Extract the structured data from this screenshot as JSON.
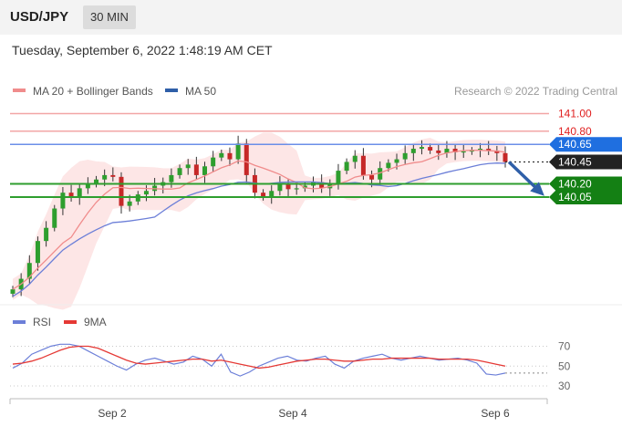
{
  "header": {
    "pair": "USD/JPY",
    "timeframe": "30 MIN",
    "datetime": "Tuesday, September 6, 2022 1:48:19 AM CET"
  },
  "legend": {
    "ma20": "MA 20 + Bollinger Bands",
    "ma50": "MA 50",
    "copyright": "Research © 2022 Trading Central",
    "rsi": "RSI",
    "rsi_ma": "9MA"
  },
  "colors": {
    "candle_up": "#2e9e2e",
    "candle_down": "#c62828",
    "ma20": "#f08c8c",
    "ma50": "#6c7fd8",
    "bollinger_fill": "#fde3e3",
    "resistance": "#f2a6a6",
    "pivot": "#6b8fe8",
    "support": "#2e9e2e",
    "badge_blue": "#1f6fe0",
    "badge_dark": "#222222",
    "badge_green": "#148014",
    "rsi_line": "#6c7fd8",
    "rsi_ma_line": "#e53935",
    "forecast_arrow": "#2f5fa8"
  },
  "chart_data": [
    {
      "type": "candlestick",
      "title": "USD/JPY",
      "x_ticks": [
        "Sep 2",
        "Sep 4",
        "Sep 6"
      ],
      "price_levels": [
        {
          "value": 141.0,
          "label": "141.00",
          "kind": "resistance"
        },
        {
          "value": 140.8,
          "label": "140.80",
          "kind": "resistance"
        },
        {
          "value": 140.65,
          "label": "140.65",
          "kind": "pivot"
        },
        {
          "value": 140.45,
          "label": "140.45",
          "kind": "last"
        },
        {
          "value": 140.2,
          "label": "140.20",
          "kind": "support"
        },
        {
          "value": 140.05,
          "label": "140.05",
          "kind": "support"
        }
      ],
      "ylim": [
        138.95,
        141.25
      ],
      "close_series": [
        139.0,
        139.12,
        139.3,
        139.55,
        139.7,
        139.92,
        140.1,
        140.05,
        140.15,
        140.2,
        140.25,
        140.3,
        140.28,
        139.95,
        140.0,
        140.08,
        140.12,
        140.18,
        140.22,
        140.3,
        140.38,
        140.42,
        140.3,
        140.4,
        140.5,
        140.55,
        140.48,
        140.66,
        140.3,
        140.1,
        140.05,
        140.12,
        140.2,
        140.14,
        140.15,
        140.18,
        140.22,
        140.15,
        140.2,
        140.35,
        140.45,
        140.52,
        140.3,
        140.25,
        140.38,
        140.44,
        140.48,
        140.55,
        140.6,
        140.62,
        140.58,
        140.55,
        140.6,
        140.56,
        140.57,
        140.58,
        140.6,
        140.58,
        140.55,
        140.45
      ],
      "forecast": {
        "from": 140.45,
        "to": 140.05
      }
    },
    {
      "type": "line",
      "title": "RSI",
      "series": [
        {
          "name": "RSI",
          "values": [
            48,
            53,
            62,
            66,
            70,
            72,
            72,
            70,
            65,
            60,
            55,
            50,
            46,
            52,
            56,
            58,
            55,
            52,
            54,
            60,
            57,
            50,
            62,
            44,
            40,
            44,
            50,
            54,
            58,
            60,
            56,
            55,
            58,
            60,
            52,
            48,
            55,
            58,
            60,
            62,
            58,
            56,
            58,
            60,
            58,
            56,
            57,
            58,
            56,
            53,
            42,
            41,
            43
          ]
        },
        {
          "name": "9MA",
          "values": [
            52,
            53,
            55,
            58,
            62,
            66,
            69,
            70,
            70,
            68,
            64,
            60,
            56,
            53,
            52,
            53,
            54,
            55,
            56,
            57,
            57,
            55,
            56,
            54,
            52,
            50,
            48,
            49,
            51,
            53,
            55,
            56,
            57,
            57,
            56,
            55,
            55,
            56,
            57,
            57,
            58,
            58,
            58,
            58,
            58,
            57,
            57,
            57,
            57,
            56,
            54,
            52,
            50
          ]
        }
      ],
      "y_ticks": [
        30,
        50,
        70
      ],
      "ylim": [
        20,
        80
      ]
    }
  ]
}
